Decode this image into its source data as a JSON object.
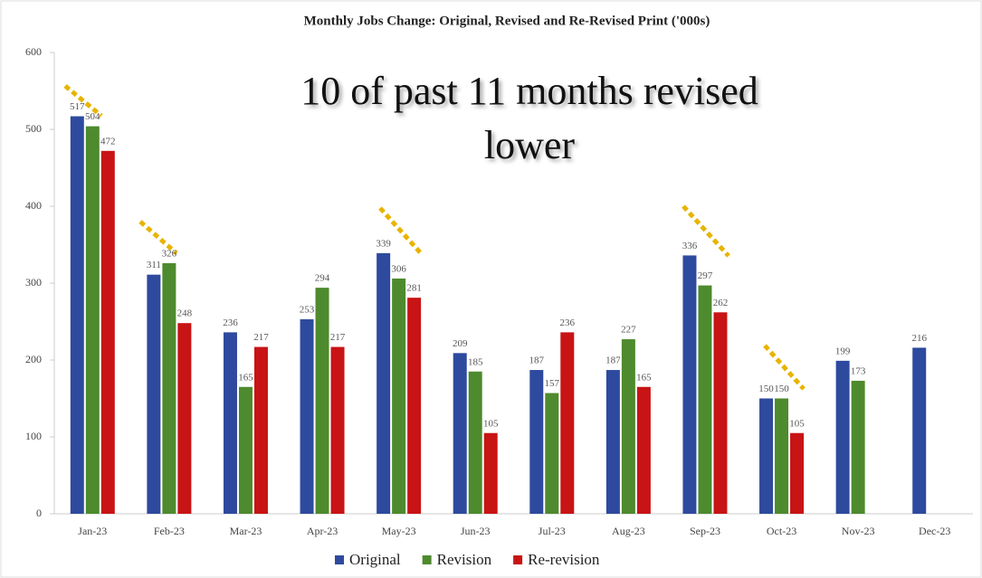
{
  "chart_data": {
    "type": "bar",
    "title": "Monthly Jobs Change: Original, Revised and Re-Revised Print ('000s)",
    "annotation": "10 of past 11 months revised lower",
    "categories": [
      "Jan-23",
      "Feb-23",
      "Mar-23",
      "Apr-23",
      "May-23",
      "Jun-23",
      "Jul-23",
      "Aug-23",
      "Sep-23",
      "Oct-23",
      "Nov-23",
      "Dec-23"
    ],
    "series": [
      {
        "name": "Original",
        "color": "#2e4a9e",
        "values": [
          517,
          311,
          236,
          253,
          339,
          209,
          187,
          187,
          336,
          150,
          199,
          216
        ]
      },
      {
        "name": "Revision",
        "color": "#4e8a2e",
        "values": [
          504,
          326,
          165,
          294,
          306,
          185,
          157,
          227,
          297,
          150,
          173,
          null
        ]
      },
      {
        "name": "Re-revision",
        "color": "#c81414",
        "values": [
          472,
          248,
          217,
          217,
          281,
          105,
          236,
          165,
          262,
          105,
          null,
          null
        ]
      }
    ],
    "ylim": [
      0,
      600
    ],
    "yticks": [
      0,
      100,
      200,
      300,
      400,
      500,
      600
    ],
    "grid": false,
    "legend": "bottom"
  }
}
